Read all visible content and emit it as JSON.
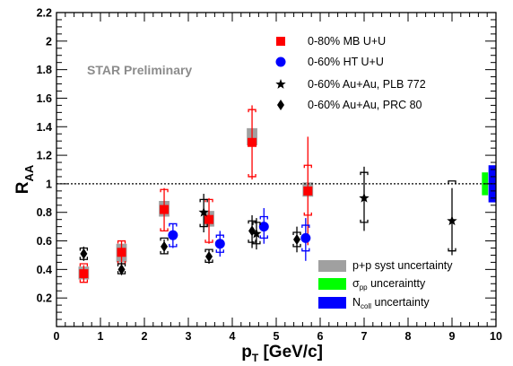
{
  "chart_data": {
    "type": "scatter",
    "title": "",
    "watermark": "STAR Preliminary",
    "xlabel": {
      "main": "p",
      "sub": "T",
      "unit": " [GeV/c]"
    },
    "ylabel": {
      "main": "R",
      "sub": "AA"
    },
    "xlim": [
      0,
      10
    ],
    "ylim": [
      0,
      2.2
    ],
    "x_ticks": [
      0,
      1,
      2,
      3,
      4,
      5,
      6,
      7,
      8,
      9,
      10
    ],
    "y_ticks": [
      0.2,
      0.4,
      0.6,
      0.8,
      1,
      1.2,
      1.4,
      1.6,
      1.8,
      2,
      2.2
    ],
    "x_tick_labels": [
      "0",
      "1",
      "2",
      "3",
      "4",
      "5",
      "6",
      "7",
      "8",
      "9",
      "10"
    ],
    "y_tick_labels": [
      "0.2",
      "0.4",
      "0.6",
      "0.8",
      "1",
      "1.2",
      "1.4",
      "1.6",
      "1.8",
      "2",
      "2.2"
    ],
    "reference_line": {
      "y": 1,
      "style": "dotted"
    },
    "series": [
      {
        "name": "0-80% MB U+U",
        "marker": "square",
        "color": "#ff0000",
        "points": [
          {
            "x": 0.62,
            "y": 0.37,
            "stat_lo": 0.31,
            "stat_hi": 0.43,
            "sys_lo": 0.31,
            "sys_hi": 0.44
          },
          {
            "x": 1.48,
            "y": 0.52,
            "stat_lo": 0.45,
            "stat_hi": 0.6,
            "sys_lo": 0.44,
            "sys_hi": 0.6
          },
          {
            "x": 2.45,
            "y": 0.82,
            "stat_lo": 0.67,
            "stat_hi": 0.97,
            "sys_lo": 0.67,
            "sys_hi": 0.96
          },
          {
            "x": 3.47,
            "y": 0.75,
            "stat_lo": 0.58,
            "stat_hi": 0.9,
            "sys_lo": 0.59,
            "sys_hi": 0.89
          },
          {
            "x": 4.45,
            "y": 1.29,
            "stat_lo": 1.03,
            "stat_hi": 1.55,
            "sys_lo": 1.05,
            "sys_hi": 1.52
          },
          {
            "x": 5.72,
            "y": 0.95,
            "stat_lo": 0.57,
            "stat_hi": 1.33,
            "sys_lo": 0.78,
            "sys_hi": 1.13
          }
        ]
      },
      {
        "name": "0-60% HT U+U",
        "marker": "circle",
        "color": "#0000ff",
        "points": [
          {
            "x": 2.65,
            "y": 0.64,
            "stat_lo": 0.55,
            "stat_hi": 0.72,
            "sys_lo": 0.56,
            "sys_hi": 0.72
          },
          {
            "x": 3.72,
            "y": 0.58,
            "stat_lo": 0.49,
            "stat_hi": 0.67,
            "sys_lo": 0.52,
            "sys_hi": 0.64
          },
          {
            "x": 4.72,
            "y": 0.7,
            "stat_lo": 0.58,
            "stat_hi": 0.83,
            "sys_lo": 0.62,
            "sys_hi": 0.77
          },
          {
            "x": 5.67,
            "y": 0.62,
            "stat_lo": 0.46,
            "stat_hi": 0.76,
            "sys_lo": 0.53,
            "sys_hi": 0.71
          }
        ]
      },
      {
        "name": "0-60% Au+Au, PLB 772",
        "marker": "star",
        "color": "#000000",
        "points": [
          {
            "x": 3.35,
            "y": 0.8,
            "stat_lo": 0.66,
            "stat_hi": 0.93,
            "sys_lo": 0.7,
            "sys_hi": 0.89
          },
          {
            "x": 4.55,
            "y": 0.65,
            "stat_lo": 0.54,
            "stat_hi": 0.76,
            "sys_lo": 0.58,
            "sys_hi": 0.73
          },
          {
            "x": 7.0,
            "y": 0.9,
            "stat_lo": 0.67,
            "stat_hi": 1.12,
            "sys_lo": 0.73,
            "sys_hi": 1.08
          },
          {
            "x": 9.0,
            "y": 0.74,
            "stat_lo": 0.5,
            "stat_hi": 0.97,
            "sys_lo": 0.53,
            "sys_hi": 1.02
          }
        ]
      },
      {
        "name": "0-60% Au+Au, PRC 80",
        "marker": "diamond",
        "color": "#000000",
        "points": [
          {
            "x": 0.62,
            "y": 0.51,
            "stat_lo": 0.46,
            "stat_hi": 0.56,
            "sys_lo": 0.47,
            "sys_hi": 0.55
          },
          {
            "x": 1.48,
            "y": 0.4,
            "stat_lo": 0.36,
            "stat_hi": 0.45,
            "sys_lo": 0.37,
            "sys_hi": 0.44
          },
          {
            "x": 2.45,
            "y": 0.56,
            "stat_lo": 0.51,
            "stat_hi": 0.61,
            "sys_lo": 0.51,
            "sys_hi": 0.62
          },
          {
            "x": 3.47,
            "y": 0.49,
            "stat_lo": 0.44,
            "stat_hi": 0.54,
            "sys_lo": 0.45,
            "sys_hi": 0.54
          },
          {
            "x": 4.45,
            "y": 0.67,
            "stat_lo": 0.55,
            "stat_hi": 0.78,
            "sys_lo": 0.59,
            "sys_hi": 0.74
          },
          {
            "x": 5.47,
            "y": 0.61,
            "stat_lo": 0.52,
            "stat_hi": 0.7,
            "sys_lo": 0.56,
            "sys_hi": 0.66
          }
        ]
      }
    ],
    "pp_syst_boxes": [
      {
        "x": 0.62,
        "y_lo": 0.33,
        "y_hi": 0.42,
        "width": 0.24
      },
      {
        "x": 1.48,
        "y_lo": 0.45,
        "y_hi": 0.58,
        "width": 0.24
      },
      {
        "x": 2.45,
        "y_lo": 0.77,
        "y_hi": 0.88,
        "width": 0.24
      },
      {
        "x": 3.47,
        "y_lo": 0.7,
        "y_hi": 0.81,
        "width": 0.24
      },
      {
        "x": 4.45,
        "y_lo": 1.27,
        "y_hi": 1.39,
        "width": 0.24
      },
      {
        "x": 5.72,
        "y_lo": 0.91,
        "y_hi": 1.01,
        "width": 0.24
      }
    ],
    "global_uncertainty": [
      {
        "name": "sigma_pp",
        "color": "#00ff00",
        "x_lo": 9.68,
        "x_hi": 9.82,
        "y_lo": 0.92,
        "y_hi": 1.08
      },
      {
        "name": "N_coll",
        "color": "#0000ff",
        "x_lo": 9.83,
        "x_hi": 10.0,
        "y_lo": 0.87,
        "y_hi": 1.13
      }
    ],
    "uncertainty_legend": [
      {
        "label": "p+p syst uncertainty",
        "color": "#a0a0a0"
      },
      {
        "label": "σ",
        "label_sub": "pp",
        "label_rest": " unceraintty",
        "color": "#00ff00"
      },
      {
        "label": "N",
        "label_sub": "coll",
        "label_rest": " uncertainty",
        "color": "#0000ff"
      }
    ],
    "legend_position": "top-right, bottom-right",
    "grid": false
  }
}
